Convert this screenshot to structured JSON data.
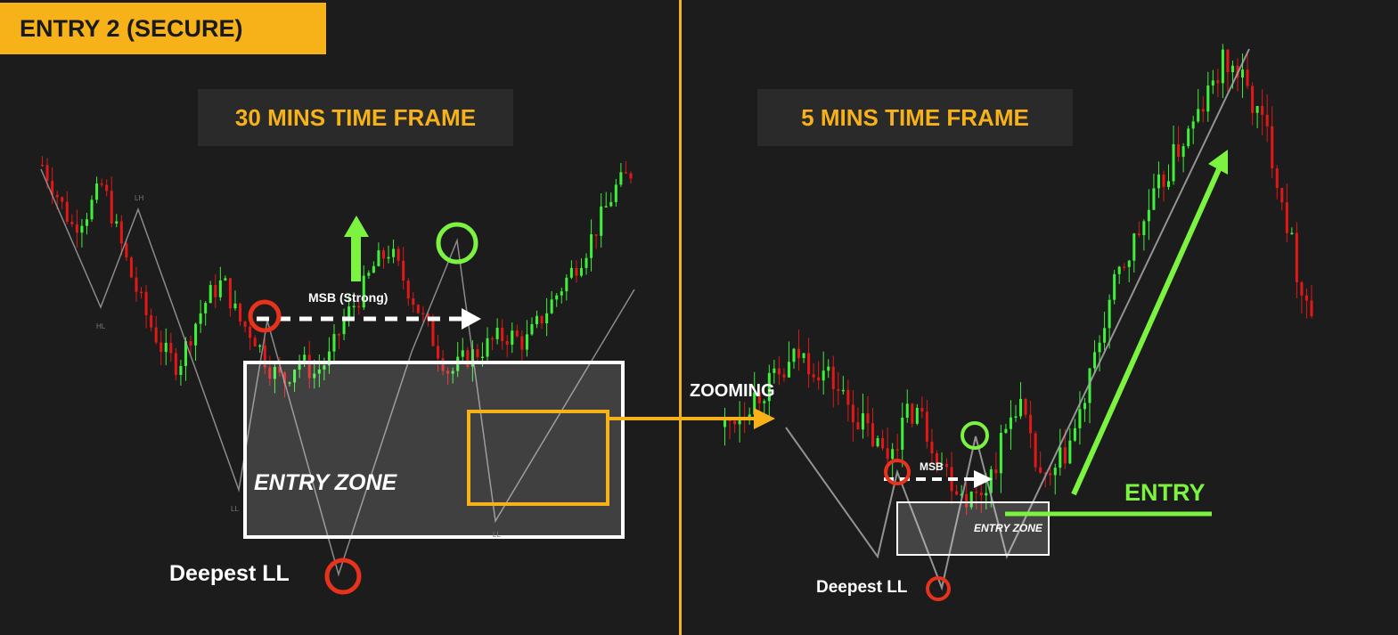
{
  "title": "ENTRY 2 (SECURE)",
  "panels": [
    {
      "label": "30 MINS TIME FRAME"
    },
    {
      "label": "5 MINS TIME FRAME"
    }
  ],
  "annotations": {
    "msb_strong": "MSB (Strong)",
    "msb": "MSB",
    "zooming": "ZOOMING",
    "entry_zone": "ENTRY ZONE",
    "entry_zone_small": "ENTRY ZONE",
    "deepest_ll_left": "Deepest LL",
    "deepest_ll_right": "Deepest LL",
    "entry": "ENTRY",
    "swing_labels": [
      "LH",
      "HL",
      "LL",
      "LL"
    ]
  },
  "colors": {
    "background": "#1c1c1c",
    "accent": "#f7b21a",
    "bull": "#3ef03a",
    "bear": "#e01818",
    "arrow_green": "#7cf241",
    "circle_red": "#e8321c",
    "circle_green": "#7cf241",
    "zigzag": "#a8a8a8",
    "box": "#ffffff",
    "zoom_box": "#f7b21a"
  },
  "chart_data": [
    {
      "type": "candlestick",
      "title": "30 MINS TIME FRAME",
      "trend_path": [
        100,
        92,
        84,
        88,
        95,
        82,
        70,
        60,
        52,
        48,
        58,
        66,
        70,
        60,
        56,
        48,
        44,
        50,
        46,
        50,
        60,
        66,
        74,
        78,
        70,
        62,
        54,
        46,
        50,
        52,
        55,
        56,
        54,
        60,
        66,
        72,
        78,
        86,
        94,
        98
      ],
      "swing_points": [
        {
          "label": "LH",
          "kind": "lower high"
        },
        {
          "label": "HL",
          "kind": "higher low"
        },
        {
          "label": "MSB (Strong)",
          "kind": "market structure break"
        },
        {
          "label": "Deepest LL",
          "kind": "deepest lower low"
        }
      ]
    },
    {
      "type": "candlestick",
      "title": "5 MINS TIME FRAME",
      "trend_path": [
        30,
        33,
        36,
        38,
        40,
        44,
        42,
        40,
        36,
        32,
        28,
        24,
        30,
        34,
        28,
        22,
        18,
        16,
        20,
        28,
        36,
        24,
        18,
        24,
        30,
        40,
        52,
        60,
        66,
        72,
        78,
        84,
        88,
        94,
        100,
        98,
        92,
        86,
        74,
        60,
        52
      ],
      "swing_points": [
        {
          "label": "MSB",
          "kind": "market structure break"
        },
        {
          "label": "Deepest LL",
          "kind": "deepest lower low"
        },
        {
          "label": "ENTRY",
          "kind": "entry level"
        }
      ]
    }
  ]
}
